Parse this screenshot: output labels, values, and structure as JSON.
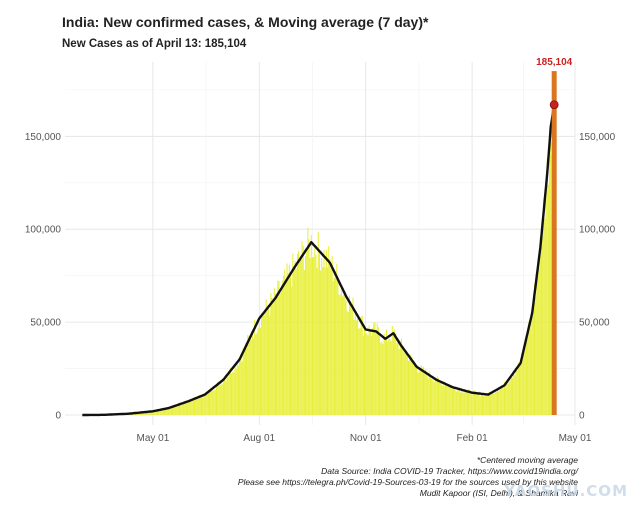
{
  "header": {
    "title": "India: New confirmed cases, & Moving average (7 day)*",
    "subtitle": "New Cases as of April 13: 185,104"
  },
  "footnotes": [
    "*Centered moving average",
    "Data Source: India COVID-19 Tracker, https://www.covid19india.org/",
    "Please see https://telegra.ph/Covid-19-Sources-03-19 for the sources used by this website",
    "Mudit Kapoor (ISI, Delhi), & Shamika Ravi"
  ],
  "watermark": "YAOSHU.COM",
  "chart_data": {
    "type": "bar",
    "series_kind": [
      "bar",
      "line"
    ],
    "x_start": "2020-03-01",
    "x_end": "2021-04-13",
    "x_ticks": [
      {
        "label": "May 01",
        "date": "2020-05-01"
      },
      {
        "label": "Aug 01",
        "date": "2020-08-01"
      },
      {
        "label": "Nov 01",
        "date": "2020-11-01"
      },
      {
        "label": "Feb 01",
        "date": "2021-02-01"
      },
      {
        "label": "May 01",
        "date": "2021-05-01"
      }
    ],
    "xlim": [
      "2020-02-15",
      "2021-05-01"
    ],
    "ylim": [
      0,
      190000
    ],
    "y_ticks": [
      0,
      50000,
      100000,
      150000
    ],
    "y_tick_labels": [
      "0",
      "50,000",
      "100,000",
      "150,000"
    ],
    "grid": true,
    "colors": {
      "bars": "#e8ef3a",
      "moving_average": "#111111",
      "latest_bar": "#d9761e",
      "peak_marker": "#cc1f1f",
      "peak_label": "#cc1f1f"
    },
    "moving_average_anchors": [
      {
        "date": "2020-03-01",
        "value": 0
      },
      {
        "date": "2020-03-20",
        "value": 100
      },
      {
        "date": "2020-04-10",
        "value": 700
      },
      {
        "date": "2020-05-01",
        "value": 2000
      },
      {
        "date": "2020-05-15",
        "value": 3800
      },
      {
        "date": "2020-06-01",
        "value": 7500
      },
      {
        "date": "2020-06-15",
        "value": 11000
      },
      {
        "date": "2020-07-01",
        "value": 19000
      },
      {
        "date": "2020-07-15",
        "value": 30000
      },
      {
        "date": "2020-08-01",
        "value": 52000
      },
      {
        "date": "2020-08-15",
        "value": 63000
      },
      {
        "date": "2020-09-01",
        "value": 80000
      },
      {
        "date": "2020-09-15",
        "value": 93000
      },
      {
        "date": "2020-10-01",
        "value": 82000
      },
      {
        "date": "2020-10-15",
        "value": 64000
      },
      {
        "date": "2020-11-01",
        "value": 46000
      },
      {
        "date": "2020-11-10",
        "value": 45000
      },
      {
        "date": "2020-11-18",
        "value": 41000
      },
      {
        "date": "2020-11-25",
        "value": 44000
      },
      {
        "date": "2020-12-01",
        "value": 38000
      },
      {
        "date": "2020-12-15",
        "value": 26000
      },
      {
        "date": "2021-01-01",
        "value": 19000
      },
      {
        "date": "2021-01-15",
        "value": 15000
      },
      {
        "date": "2021-02-01",
        "value": 12000
      },
      {
        "date": "2021-02-15",
        "value": 11000
      },
      {
        "date": "2021-03-01",
        "value": 16000
      },
      {
        "date": "2021-03-15",
        "value": 28000
      },
      {
        "date": "2021-03-25",
        "value": 55000
      },
      {
        "date": "2021-04-01",
        "value": 90000
      },
      {
        "date": "2021-04-07",
        "value": 130000
      },
      {
        "date": "2021-04-10",
        "value": 155000
      },
      {
        "date": "2021-04-13",
        "value": 167000
      }
    ],
    "latest": {
      "date": "2021-04-13",
      "value": 185104,
      "label": "185,104"
    }
  }
}
